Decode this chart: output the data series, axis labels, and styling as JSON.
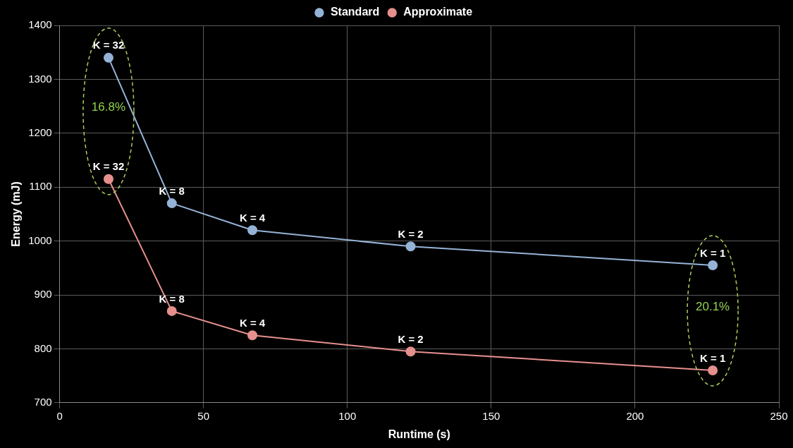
{
  "chart_data": {
    "type": "line",
    "xlabel": "Runtime (s)",
    "ylabel": "Energy (mJ)",
    "xlim": [
      0,
      250
    ],
    "xticks": [
      0,
      50,
      100,
      150,
      200,
      250
    ],
    "ylim": [
      700,
      1400
    ],
    "yticks": [
      700,
      800,
      900,
      1000,
      1100,
      1200,
      1300,
      1400
    ],
    "grid": true,
    "legend": "top",
    "marker": "circle",
    "line_style": "solid",
    "series": [
      {
        "name": "Standard",
        "color": "#95b3d7",
        "x": [
          17,
          39,
          67,
          122,
          227
        ],
        "values": [
          1340,
          1070,
          1020,
          990,
          955
        ]
      },
      {
        "name": "Approximate",
        "color": "#e6908e",
        "x": [
          17,
          39,
          67,
          122,
          227
        ],
        "values": [
          1115,
          870,
          825,
          795,
          760
        ]
      }
    ],
    "annotations": [
      {
        "text": "K = 32",
        "x": 17,
        "y": 1340
      },
      {
        "text": "K = 8",
        "x": 39,
        "y": 1070
      },
      {
        "text": "K = 4",
        "x": 67,
        "y": 1020
      },
      {
        "text": "K = 2",
        "x": 122,
        "y": 990
      },
      {
        "text": "K = 1",
        "x": 227,
        "y": 955
      },
      {
        "text": "K = 32",
        "x": 17,
        "y": 1115
      },
      {
        "text": "K = 8",
        "x": 39,
        "y": 870
      },
      {
        "text": "K = 4",
        "x": 67,
        "y": 825
      },
      {
        "text": "K = 2",
        "x": 122,
        "y": 795
      },
      {
        "text": "K = 1",
        "x": 227,
        "y": 760
      },
      "16.8%",
      "20.1%"
    ]
  }
}
